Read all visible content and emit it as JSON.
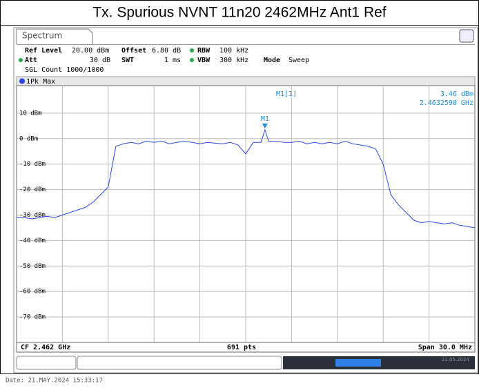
{
  "title": "Tx. Spurious NVNT 11n20 2462MHz Ant1 Ref",
  "tab": "Spectrum",
  "settings": {
    "ref_level_label": "Ref Level",
    "ref_level": "20.00 dBm",
    "offset_label": "Offset",
    "offset": "6.80 dB",
    "rbw_label": "RBW",
    "rbw": "100 kHz",
    "att_label": "Att",
    "att": "30 dB",
    "swt_label": "SWT",
    "swt": "1 ms",
    "vbw_label": "VBW",
    "vbw": "300 kHz",
    "mode_label": "Mode",
    "mode": "Sweep",
    "sgl_count": "SGL Count 1000/1000"
  },
  "trace_label": "1Pk Max",
  "marker": {
    "name": "M1[1]",
    "label": "M1",
    "x": 2.463259,
    "y": 3.46,
    "y_label": "3.46 dBm",
    "x_label": "2.4632590 GHz"
  },
  "footer": {
    "center_freq": "CF 2.462 GHz",
    "points": "691 pts",
    "span": "Span 30.0 MHz",
    "status_date": "21.05.2024",
    "date": "Date: 21.MAY.2024  15:33:17"
  },
  "chart_data": {
    "type": "line",
    "xlim": [
      2.447,
      2.477
    ],
    "ylim": [
      -80,
      20
    ],
    "yticks": [
      {
        "value": 10,
        "label": "10 dBm"
      },
      {
        "value": 0,
        "label": "0 dBm"
      },
      {
        "value": -10,
        "label": "-10 dBm"
      },
      {
        "value": -20,
        "label": "-20 dBm"
      },
      {
        "value": -30,
        "label": "-30 dBm"
      },
      {
        "value": -40,
        "label": "-40 dBm"
      },
      {
        "value": -50,
        "label": "-50 dBm"
      },
      {
        "value": -60,
        "label": "-60 dBm"
      },
      {
        "value": -70,
        "label": "-70 dBm"
      }
    ],
    "grid": true,
    "x": [
      2.447,
      2.4475,
      2.448,
      2.4485,
      2.449,
      2.4495,
      2.45,
      2.4505,
      2.451,
      2.4515,
      2.452,
      2.4525,
      2.453,
      2.4535,
      2.454,
      2.4545,
      2.455,
      2.4555,
      2.456,
      2.4565,
      2.457,
      2.4575,
      2.458,
      2.4585,
      2.459,
      2.4595,
      2.46,
      2.4605,
      2.461,
      2.4615,
      2.462,
      2.4625,
      2.463,
      2.463259,
      2.4635,
      2.464,
      2.4645,
      2.465,
      2.4655,
      2.466,
      2.4665,
      2.467,
      2.4675,
      2.468,
      2.4685,
      2.469,
      2.4695,
      2.47,
      2.4705,
      2.471,
      2.4715,
      2.472,
      2.4725,
      2.473,
      2.4735,
      2.474,
      2.4745,
      2.475,
      2.4755,
      2.476,
      2.4765,
      2.477
    ],
    "series": [
      {
        "name": "1Pk Max",
        "color": "#2a45e8",
        "values": [
          -31,
          -31,
          -31.5,
          -31,
          -30.5,
          -31,
          -30,
          -29,
          -28,
          -27,
          -25,
          -22,
          -19,
          -3,
          -2,
          -1.5,
          -2,
          -1,
          -1.5,
          -1,
          -2,
          -1.5,
          -1,
          -1.5,
          -2,
          -1.5,
          -1.8,
          -2,
          -1.5,
          -2.5,
          -6,
          -1.5,
          -1.5,
          3.46,
          -1,
          -1,
          -1.5,
          -1.5,
          -1,
          -2,
          -1.5,
          -2,
          -1.5,
          -2,
          -1,
          -2,
          -2.5,
          -3,
          -4,
          -10,
          -22,
          -26,
          -29,
          -32,
          -33,
          -32.5,
          -33,
          -33.5,
          -33,
          -34,
          -34.5,
          -35
        ]
      }
    ]
  }
}
